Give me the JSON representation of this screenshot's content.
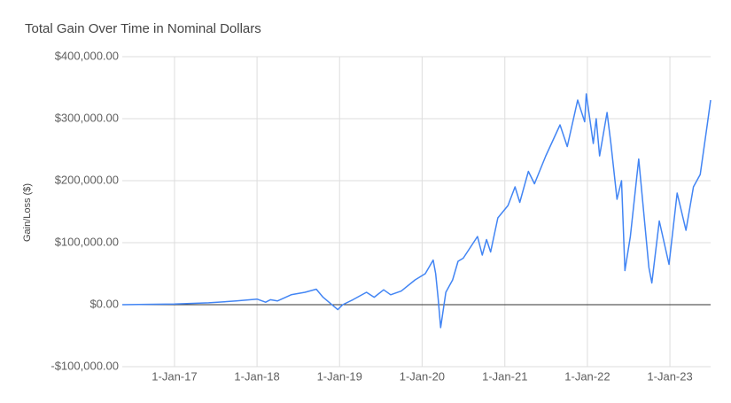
{
  "chart_data": {
    "type": "line",
    "title": "Total Gain Over Time in Nominal Dollars",
    "y_label": "Gain/Loss ($)",
    "color": "#4285f4",
    "grid": true,
    "x": [
      "2016-05-15",
      "2016-09-01",
      "2017-01-01",
      "2017-06-01",
      "2017-10-01",
      "2018-01-01",
      "2018-02-08",
      "2018-03-01",
      "2018-04-01",
      "2018-06-01",
      "2018-08-01",
      "2018-09-20",
      "2018-10-20",
      "2018-12-24",
      "2019-01-15",
      "2019-03-01",
      "2019-04-30",
      "2019-06-03",
      "2019-07-15",
      "2019-08-15",
      "2019-10-01",
      "2019-12-01",
      "2020-01-15",
      "2020-02-19",
      "2020-03-01",
      "2020-03-12",
      "2020-03-23",
      "2020-04-15",
      "2020-05-15",
      "2020-06-08",
      "2020-07-01",
      "2020-09-02",
      "2020-09-23",
      "2020-10-12",
      "2020-10-30",
      "2020-12-01",
      "2021-01-15",
      "2021-02-15",
      "2021-03-08",
      "2021-04-15",
      "2021-05-12",
      "2021-07-01",
      "2021-09-02",
      "2021-10-04",
      "2021-11-19",
      "2021-12-20",
      "2021-12-27",
      "2022-01-27",
      "2022-02-09",
      "2022-02-24",
      "2022-03-29",
      "2022-04-15",
      "2022-05-12",
      "2022-06-01",
      "2022-06-16",
      "2022-07-10",
      "2022-08-16",
      "2022-09-30",
      "2022-10-13",
      "2022-11-15",
      "2022-12-28",
      "2023-02-02",
      "2023-03-13",
      "2023-04-15",
      "2023-05-15",
      "2023-06-15",
      "2023-06-30"
    ],
    "values": [
      0,
      500,
      1000,
      3000,
      6000,
      9000,
      4000,
      8000,
      6000,
      16000,
      20000,
      25000,
      12000,
      -8000,
      0,
      8000,
      20000,
      12000,
      24000,
      16000,
      22000,
      40000,
      50000,
      72000,
      50000,
      10000,
      -37000,
      20000,
      40000,
      70000,
      75000,
      110000,
      80000,
      105000,
      85000,
      140000,
      160000,
      190000,
      165000,
      215000,
      195000,
      240000,
      290000,
      255000,
      330000,
      295000,
      340000,
      260000,
      300000,
      240000,
      310000,
      260000,
      170000,
      200000,
      55000,
      110000,
      235000,
      60000,
      35000,
      135000,
      65000,
      180000,
      120000,
      190000,
      210000,
      290000,
      330000
    ],
    "xlim": [
      "2016-05-15",
      "2023-06-30"
    ],
    "xticks": [
      {
        "value": "2017-01-01",
        "label": "1-Jan-17"
      },
      {
        "value": "2018-01-01",
        "label": "1-Jan-18"
      },
      {
        "value": "2019-01-01",
        "label": "1-Jan-19"
      },
      {
        "value": "2020-01-01",
        "label": "1-Jan-20"
      },
      {
        "value": "2021-01-01",
        "label": "1-Jan-21"
      },
      {
        "value": "2022-01-01",
        "label": "1-Jan-22"
      },
      {
        "value": "2023-01-01",
        "label": "1-Jan-23"
      }
    ],
    "ylim": [
      -100000,
      400000
    ],
    "yticks": [
      {
        "value": -100000,
        "label": "-$100,000.00"
      },
      {
        "value": 0,
        "label": "$0.00"
      },
      {
        "value": 100000,
        "label": "$100,000.00"
      },
      {
        "value": 200000,
        "label": "$200,000.00"
      },
      {
        "value": 300000,
        "label": "$300,000.00"
      },
      {
        "value": 400000,
        "label": "$400,000.00"
      }
    ]
  }
}
